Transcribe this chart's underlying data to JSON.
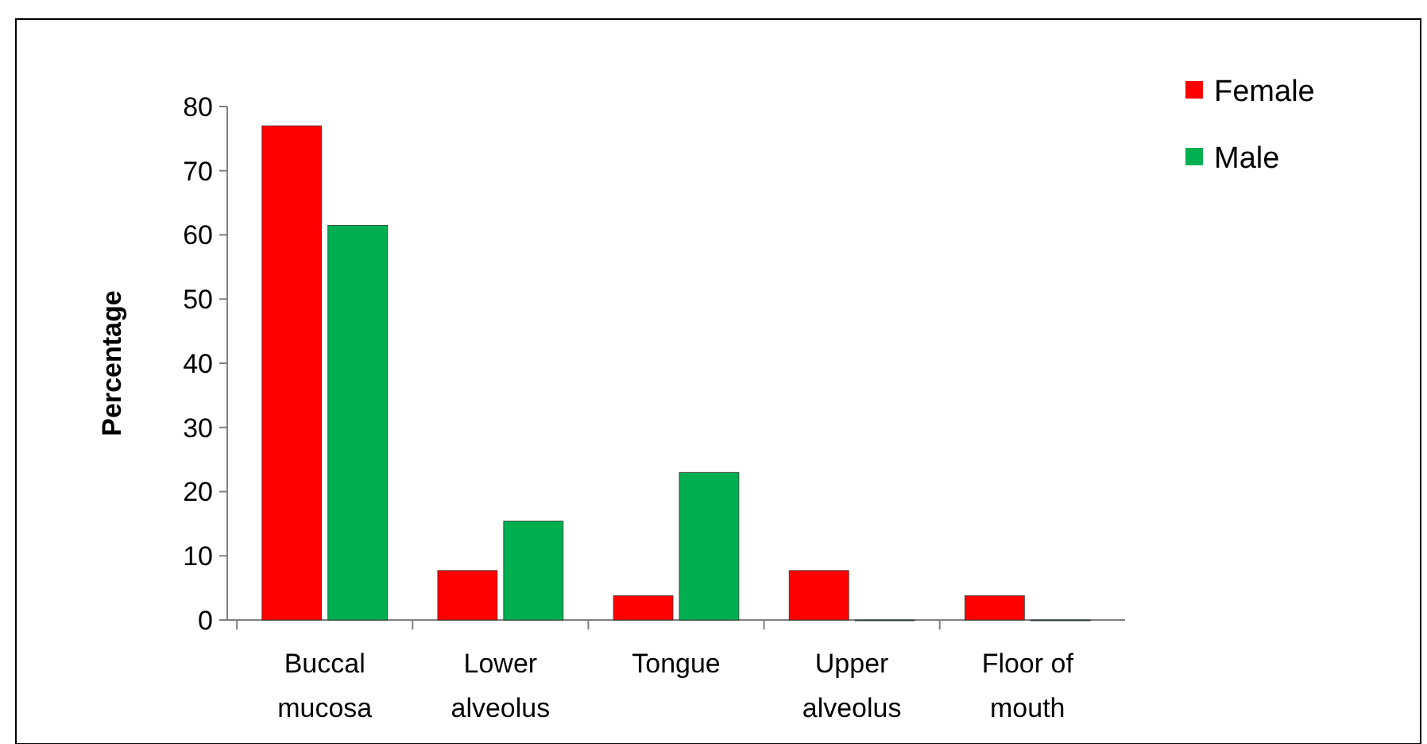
{
  "chart_data": {
    "type": "bar",
    "ylabel": "Percentage",
    "categories": [
      "Buccal\nmucosa",
      "Lower\nalveolus",
      "Tongue",
      "Upper\nalveolus",
      "Floor of\nmouth"
    ],
    "series": [
      {
        "name": "Female",
        "color": "#ff0000",
        "values": [
          77,
          7.7,
          3.8,
          7.7,
          3.8
        ]
      },
      {
        "name": "Male",
        "color": "#00b050",
        "values": [
          61.5,
          15.4,
          23,
          0,
          0
        ]
      }
    ],
    "ylim": [
      0,
      80
    ],
    "yticks": [
      0,
      10,
      20,
      30,
      40,
      50,
      60,
      70,
      80
    ],
    "legend": "top right",
    "grid": false
  }
}
